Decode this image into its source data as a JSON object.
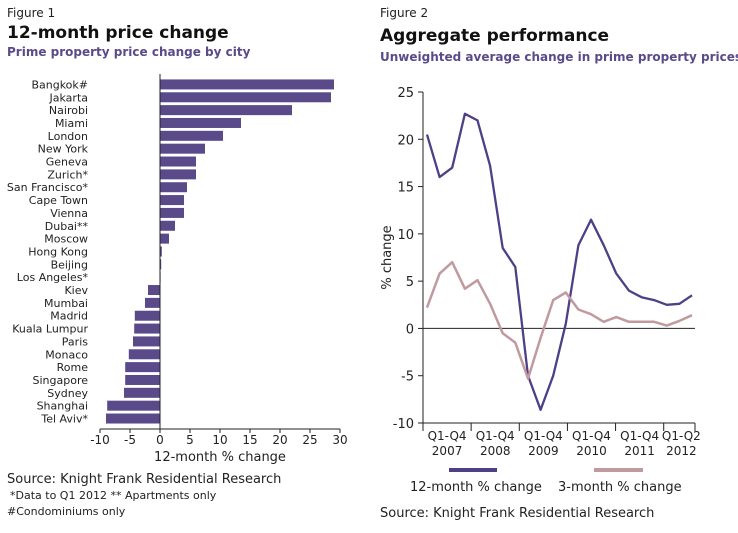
{
  "colors": {
    "bar": "#5a4a8a",
    "line12": "#4f3f86",
    "line3": "#c09a9e",
    "axis": "#222222",
    "text": "#222222"
  },
  "fig1": {
    "fig_label": "Figure 1",
    "title": "12-month price change",
    "subtitle": "Prime property price change by city",
    "source": "Source: Knight Frank Residential Research",
    "note1": "*Data to Q1 2012  ** Apartments only",
    "note2": "#Condominiums only"
  },
  "fig2": {
    "fig_label": "Figure 2",
    "title": "Aggregate performance",
    "subtitle": "Unweighted average change in prime property prices",
    "source": "Source: Knight Frank Residential Research"
  },
  "chart_data": [
    {
      "type": "bar",
      "orientation": "horizontal",
      "xlabel": "12-month % change",
      "xlim": [
        -10,
        30
      ],
      "xticks": [
        "-10",
        "-5",
        "0",
        "5",
        "10",
        "15",
        "20",
        "25",
        "30"
      ],
      "categories": [
        "Bangkok#",
        "Jakarta",
        "Nairobi",
        "Miami",
        "London",
        "New York",
        "Geneva",
        "Zurich*",
        "San Francisco*",
        "Cape Town",
        "Vienna",
        "Dubai**",
        "Moscow",
        "Hong Kong",
        "Beijing",
        "Los Angeles*",
        "Kiev",
        "Mumbai",
        "Madrid",
        "Kuala Lumpur",
        "Paris",
        "Monaco",
        "Rome",
        "Singapore",
        "Sydney",
        "Shanghai",
        "Tel Aviv*"
      ],
      "values": [
        29.0,
        28.5,
        22.0,
        13.5,
        10.5,
        7.5,
        6.0,
        6.0,
        4.5,
        4.0,
        4.0,
        2.5,
        1.5,
        0.3,
        0.2,
        0.0,
        -2.0,
        -2.5,
        -4.2,
        -4.3,
        -4.5,
        -5.2,
        -5.8,
        -5.8,
        -6.0,
        -8.8,
        -9.0
      ],
      "grid": false
    },
    {
      "type": "line",
      "ylabel": "% change",
      "ylim": [
        -10,
        25
      ],
      "yticks": [
        "25",
        "20",
        "15",
        "10",
        "5",
        "0",
        "-5",
        "-10"
      ],
      "xtick_groups": [
        {
          "q": "Q1-Q4",
          "year": "2007"
        },
        {
          "q": "Q1-Q4",
          "year": "2008"
        },
        {
          "q": "Q1-Q4",
          "year": "2009"
        },
        {
          "q": "Q1-Q4",
          "year": "2010"
        },
        {
          "q": "Q1-Q4",
          "year": "2011"
        },
        {
          "q": "Q1-Q2",
          "year": "2012"
        }
      ],
      "x": [
        "2007 Q1",
        "2007 Q2",
        "2007 Q3",
        "2007 Q4",
        "2008 Q1",
        "2008 Q2",
        "2008 Q3",
        "2008 Q4",
        "2009 Q1",
        "2009 Q2",
        "2009 Q3",
        "2009 Q4",
        "2010 Q1",
        "2010 Q2",
        "2010 Q3",
        "2010 Q4",
        "2011 Q1",
        "2011 Q2",
        "2011 Q3",
        "2011 Q4",
        "2012 Q1",
        "2012 Q2"
      ],
      "series": [
        {
          "name": "12-month % change",
          "values": [
            20.5,
            16.0,
            17.0,
            22.7,
            22.0,
            17.2,
            8.5,
            6.5,
            -5.0,
            -8.6,
            -5.0,
            0.5,
            8.8,
            11.5,
            8.8,
            5.8,
            4.0,
            3.3,
            3.0,
            2.5,
            2.6,
            3.5
          ]
        },
        {
          "name": "3-month % change",
          "values": [
            2.2,
            5.8,
            7.0,
            4.2,
            5.1,
            2.6,
            -0.5,
            -1.5,
            -5.3,
            -1.0,
            3.0,
            3.8,
            2.0,
            1.5,
            0.7,
            1.2,
            0.7,
            0.7,
            0.7,
            0.3,
            0.8,
            1.4
          ]
        }
      ],
      "legend_position": "bottom",
      "grid": false
    }
  ]
}
